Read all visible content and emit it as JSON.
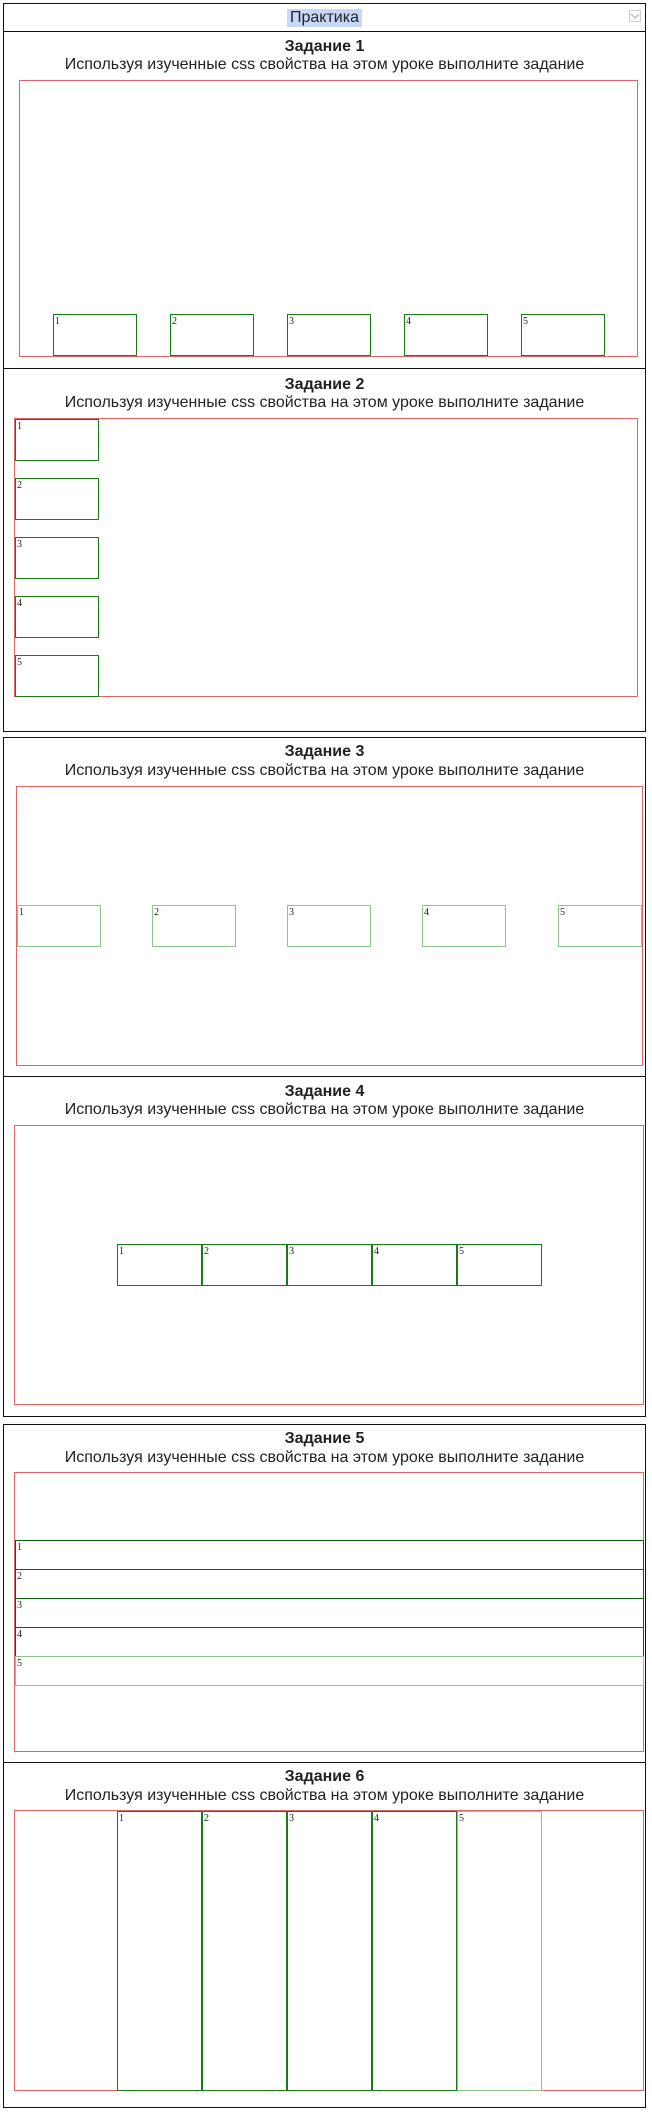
{
  "window": {
    "title": "Практика"
  },
  "subtitle": "Используя изученные  css свойства на этом уроке выполните задание",
  "tasks": [
    {
      "title": "Задание 1",
      "items": [
        "1",
        "2",
        "3",
        "4",
        "5"
      ]
    },
    {
      "title": "Задание 2",
      "items": [
        "1",
        "2",
        "3",
        "4",
        "5"
      ]
    },
    {
      "title": "Задание 3",
      "items": [
        "1",
        "2",
        "3",
        "4",
        "5"
      ]
    },
    {
      "title": "Задание 4",
      "items": [
        "1",
        "2",
        "3",
        "4",
        "5"
      ]
    },
    {
      "title": "Задание 5",
      "items": [
        "1",
        "2",
        "3",
        "4",
        "5"
      ]
    },
    {
      "title": "Задание 6",
      "items": [
        "1",
        "2",
        "3",
        "4",
        "5"
      ]
    }
  ],
  "colors": {
    "frame": "#111111",
    "container": "#e06666",
    "item": "#1a7a1a",
    "title_highlight": "#c7d7f7"
  }
}
